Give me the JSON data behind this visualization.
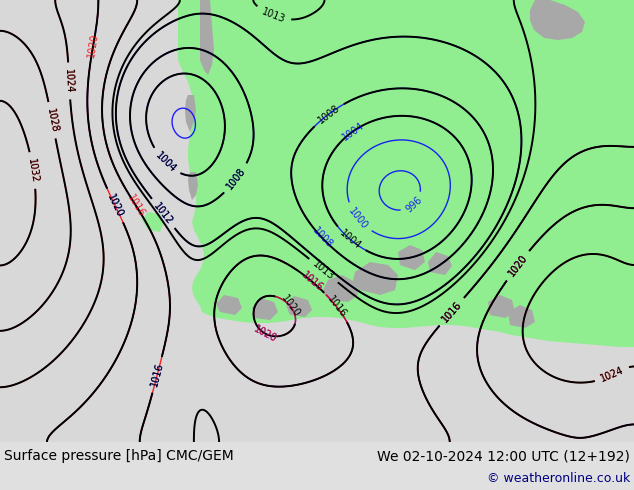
{
  "title_left": "Surface pressure [hPa] CMC/GEM",
  "title_right": "We 02-10-2024 12:00 UTC (12+192)",
  "copyright": "© weatheronline.co.uk",
  "bg_color": "#d8d8d8",
  "land_color_green": "#90ee90",
  "land_color_gray": "#a8a8a8",
  "bar_color": "#e0e0e0",
  "title_fontsize": 10,
  "copyright_fontsize": 9
}
